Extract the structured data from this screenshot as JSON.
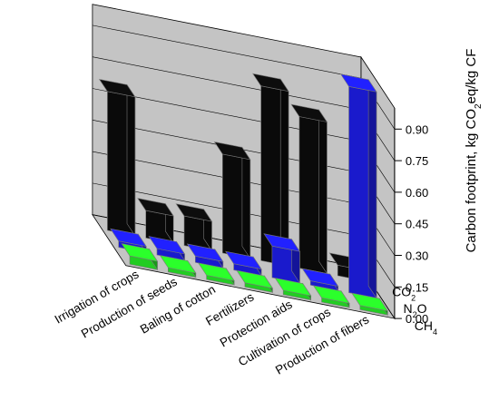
{
  "chart_data": {
    "type": "bar3d",
    "zlabel": "Carbon footprint, kg CO₂eq/kg CF",
    "zlabel_parts": {
      "main": "Carbon footprint, kg CO",
      "sub": "2",
      "tail": "eq/kg CF"
    },
    "zlim": [
      0,
      1.0
    ],
    "ztick_labels": [
      "0.00",
      "0.15",
      "0.30",
      "0.45",
      "0.60",
      "0.75",
      "0.90"
    ],
    "categories": [
      "Production of fibers",
      "Cultivation of crops",
      "Protection aids",
      "Fertilizers",
      "Baling of cotton",
      "Production of seeds",
      "Irrigation of crops"
    ],
    "series": [
      {
        "name": "CO₂",
        "name_parts": {
          "main": "CO",
          "sub": "2"
        },
        "values": [
          0.05,
          0.72,
          0.83,
          0.47,
          0.14,
          0.13,
          0.66
        ]
      },
      {
        "name": "N₂O",
        "name_parts": {
          "main": "N",
          "sub": "2",
          "tail": "O"
        },
        "values": [
          0.98,
          0.02,
          0.15,
          0.03,
          0.03,
          0.03,
          0.03
        ]
      },
      {
        "name": "CH₄",
        "name_parts": {
          "main": "CH",
          "sub": "4"
        },
        "values": [
          0.02,
          0.02,
          0.02,
          0.02,
          0.02,
          0.02,
          0.04
        ]
      }
    ],
    "colors": {
      "CO2": "#0a0a0a",
      "N2O": "#1a1acc",
      "CH4": "#22cc22"
    },
    "wall_color": "#c4c4c4",
    "floor_color": "#c4c4c4"
  }
}
